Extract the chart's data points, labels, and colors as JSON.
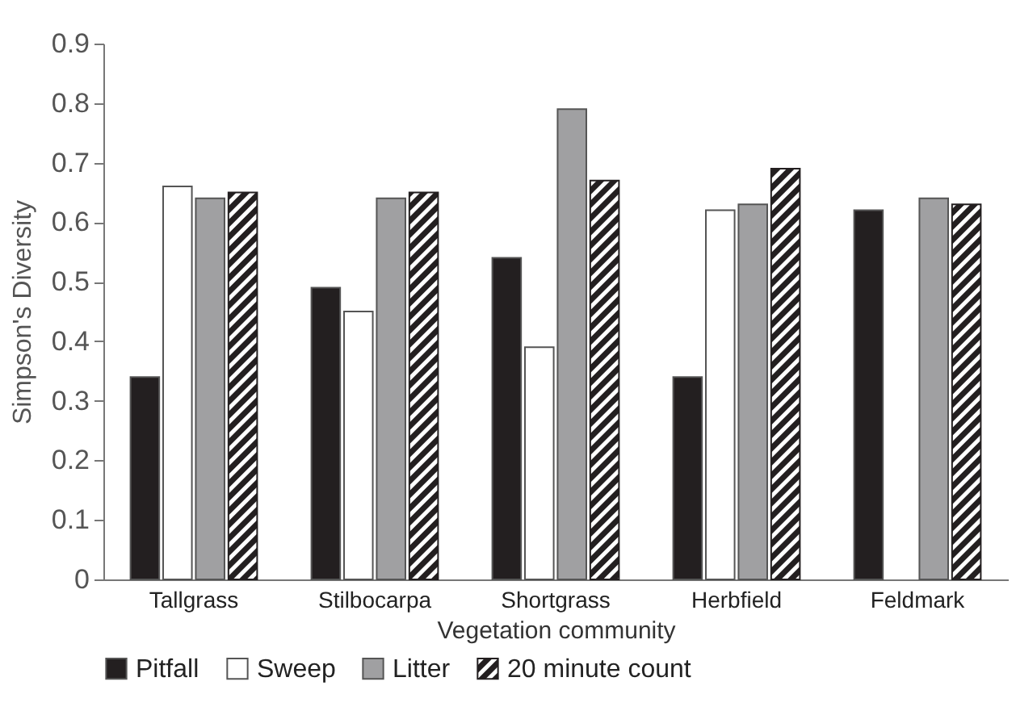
{
  "chart_data": {
    "type": "bar",
    "xlabel": "Vegetation community",
    "ylabel": "Simpson's Diversity",
    "categories": [
      "Tallgrass",
      "Stilbocarpa",
      "Shortgrass",
      "Herbfield",
      "Feldmark"
    ],
    "series": [
      {
        "name": "Pitfall",
        "color": "#231f20",
        "values": [
          0.34,
          0.49,
          0.54,
          0.34,
          0.62
        ]
      },
      {
        "name": "Sweep",
        "color": "#ffffff",
        "values": [
          0.66,
          0.45,
          0.39,
          0.62,
          null
        ]
      },
      {
        "name": "Litter",
        "color": "#a0a0a2",
        "values": [
          0.64,
          0.64,
          0.79,
          0.63,
          0.64
        ]
      },
      {
        "name": "20 minute count",
        "color": "#231f20",
        "values": [
          0.65,
          0.65,
          0.67,
          0.69,
          0.63
        ]
      }
    ],
    "ylim": [
      0,
      0.9
    ],
    "yticks": [
      0,
      0.1,
      0.2,
      0.3,
      0.4,
      0.5,
      0.6,
      0.7,
      0.8,
      0.9
    ],
    "grid": false,
    "legend": "bottom"
  }
}
